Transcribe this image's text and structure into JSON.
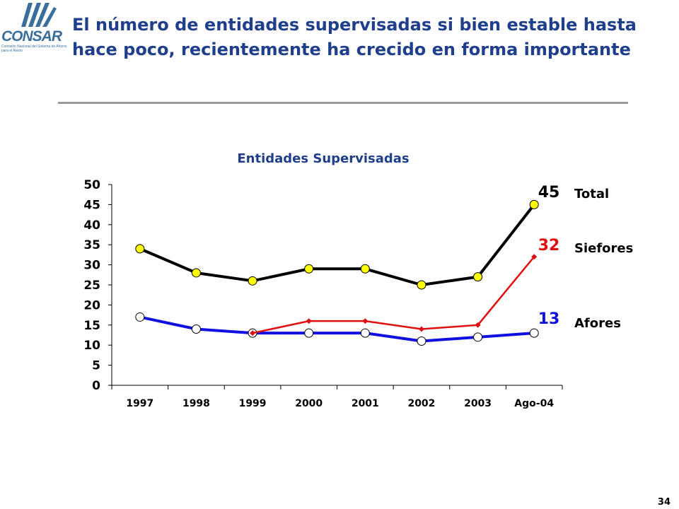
{
  "logo": {
    "text": "CONSAR",
    "subtext": "Comisión Nacional del Sistema de Ahorro para el Retiro"
  },
  "header": {
    "title": "El número de entidades supervisadas si bien estable hasta hace poco, recientemente ha crecido en forma importante"
  },
  "page_number": "34",
  "colors": {
    "title": "#1f3f8c",
    "total": "#000000",
    "siefores": "#e01010",
    "afores": "#1010e0",
    "total_marker": "#ffff00",
    "rule": "#999999"
  },
  "chart_data": {
    "type": "line",
    "title": "Entidades Supervisadas",
    "categories": [
      "1997",
      "1998",
      "1999",
      "2000",
      "2001",
      "2002",
      "2003",
      "Ago-04"
    ],
    "ylim": [
      0,
      50
    ],
    "yticks": [
      0,
      5,
      10,
      15,
      20,
      25,
      30,
      35,
      40,
      45,
      50
    ],
    "grid": false,
    "legend": "right, inline labels",
    "series": [
      {
        "name": "Total",
        "values": [
          34,
          28,
          26,
          29,
          29,
          25,
          27,
          45
        ],
        "end_label": "45",
        "color": "#000000",
        "marker": "circle-yellow"
      },
      {
        "name": "Siefores",
        "values": [
          null,
          null,
          13,
          16,
          16,
          14,
          15,
          32
        ],
        "end_label": "32",
        "color": "#e01010",
        "marker": "diamond-red"
      },
      {
        "name": "Afores",
        "values": [
          17,
          14,
          13,
          13,
          13,
          11,
          12,
          13
        ],
        "end_label": "13",
        "color": "#1010e0",
        "marker": "circle-white"
      }
    ]
  }
}
